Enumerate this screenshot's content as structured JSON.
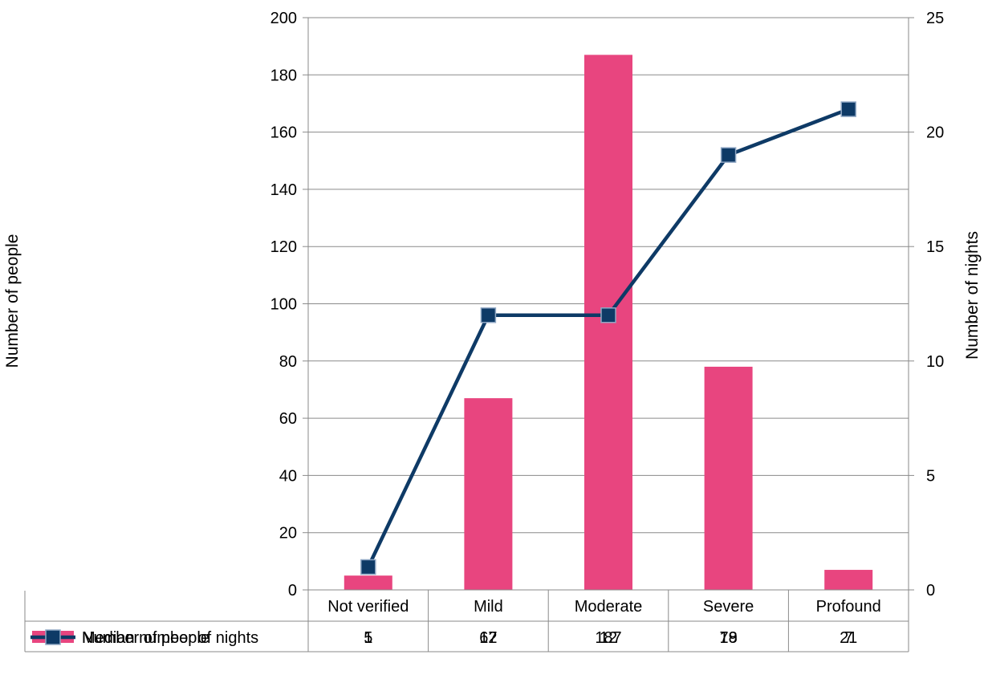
{
  "chart_data": {
    "type": "bar+line",
    "title": "",
    "categories": [
      "Not verified",
      "Mild",
      "Moderate",
      "Severe",
      "Profound"
    ],
    "y_left": {
      "label": "Number of people",
      "ylim": [
        0,
        200
      ],
      "ticks": [
        0,
        20,
        40,
        60,
        80,
        100,
        120,
        140,
        160,
        180,
        200
      ]
    },
    "y_right": {
      "label": "Number of nights",
      "ylim": [
        0,
        25
      ],
      "ticks": [
        0,
        5,
        10,
        15,
        20,
        25
      ]
    },
    "grid": true,
    "legend": "data-table",
    "series": [
      {
        "name": "Number of people",
        "kind": "bar",
        "axis": "left",
        "color": "#e8457f",
        "values": [
          5,
          67,
          187,
          78,
          7
        ]
      },
      {
        "name": "Median number of nights",
        "kind": "line",
        "axis": "right",
        "color": "#0e3a66",
        "marker_color": "#0e3a66",
        "values": [
          1,
          12,
          12,
          19,
          21
        ]
      }
    ]
  }
}
